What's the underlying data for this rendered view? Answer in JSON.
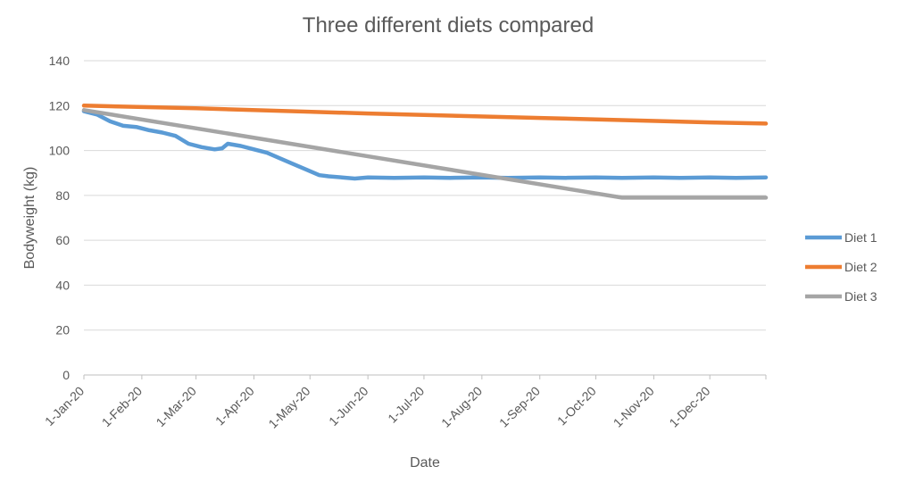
{
  "chart_data": {
    "type": "line",
    "title": "Three different diets compared",
    "xlabel": "Date",
    "ylabel": "Bodyweight (kg)",
    "ylim": [
      0,
      140
    ],
    "yticks": [
      0,
      20,
      40,
      60,
      80,
      100,
      120,
      140
    ],
    "xlim": [
      "2020-01-01",
      "2020-12-31"
    ],
    "xticks": [
      {
        "date": "2020-01-01",
        "label": "1-Jan-20"
      },
      {
        "date": "2020-02-01",
        "label": "1-Feb-20"
      },
      {
        "date": "2020-03-01",
        "label": "1-Mar-20"
      },
      {
        "date": "2020-04-01",
        "label": "1-Apr-20"
      },
      {
        "date": "2020-05-01",
        "label": "1-May-20"
      },
      {
        "date": "2020-06-01",
        "label": "1-Jun-20"
      },
      {
        "date": "2020-07-01",
        "label": "1-Jul-20"
      },
      {
        "date": "2020-08-01",
        "label": "1-Aug-20"
      },
      {
        "date": "2020-09-01",
        "label": "1-Sep-20"
      },
      {
        "date": "2020-10-01",
        "label": "1-Oct-20"
      },
      {
        "date": "2020-11-01",
        "label": "1-Nov-20"
      },
      {
        "date": "2020-12-01",
        "label": "1-Dec-20"
      }
    ],
    "grid": true,
    "legend_position": "right",
    "series": [
      {
        "name": "Diet 1",
        "color": "#5b9bd5",
        "points": [
          [
            "2020-01-01",
            117.5
          ],
          [
            "2020-01-08",
            116
          ],
          [
            "2020-01-15",
            113
          ],
          [
            "2020-01-22",
            111
          ],
          [
            "2020-01-29",
            110.5
          ],
          [
            "2020-02-05",
            109
          ],
          [
            "2020-02-12",
            108
          ],
          [
            "2020-02-19",
            106.5
          ],
          [
            "2020-02-26",
            103
          ],
          [
            "2020-03-04",
            101.5
          ],
          [
            "2020-03-11",
            100.5
          ],
          [
            "2020-03-15",
            101
          ],
          [
            "2020-03-18",
            103
          ],
          [
            "2020-03-25",
            102
          ],
          [
            "2020-04-01",
            100.5
          ],
          [
            "2020-04-08",
            99
          ],
          [
            "2020-04-15",
            96.5
          ],
          [
            "2020-04-22",
            94
          ],
          [
            "2020-04-29",
            91.5
          ],
          [
            "2020-05-06",
            89
          ],
          [
            "2020-05-11",
            88.5
          ],
          [
            "2020-05-18",
            88
          ],
          [
            "2020-05-25",
            87.5
          ],
          [
            "2020-06-01",
            88
          ],
          [
            "2020-06-15",
            87.8
          ],
          [
            "2020-07-01",
            88
          ],
          [
            "2020-07-15",
            87.8
          ],
          [
            "2020-08-01",
            88
          ],
          [
            "2020-08-15",
            87.8
          ],
          [
            "2020-09-01",
            88
          ],
          [
            "2020-09-15",
            87.8
          ],
          [
            "2020-10-01",
            88
          ],
          [
            "2020-10-15",
            87.8
          ],
          [
            "2020-11-01",
            88
          ],
          [
            "2020-11-15",
            87.8
          ],
          [
            "2020-12-01",
            88
          ],
          [
            "2020-12-15",
            87.8
          ],
          [
            "2020-12-31",
            88
          ]
        ]
      },
      {
        "name": "Diet 2",
        "color": "#ed7d31",
        "points": [
          [
            "2020-01-01",
            120
          ],
          [
            "2020-03-01",
            118.8
          ],
          [
            "2020-06-01",
            116.5
          ],
          [
            "2020-09-01",
            114.5
          ],
          [
            "2020-12-01",
            112.5
          ],
          [
            "2020-12-31",
            112
          ]
        ]
      },
      {
        "name": "Diet 3",
        "color": "#a5a5a5",
        "points": [
          [
            "2020-01-01",
            118
          ],
          [
            "2020-10-15",
            79
          ],
          [
            "2020-12-31",
            79
          ]
        ]
      }
    ]
  }
}
